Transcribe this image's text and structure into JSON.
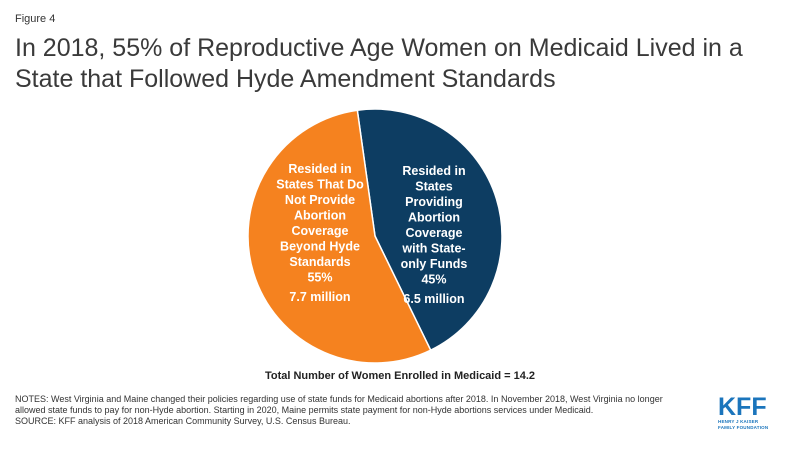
{
  "figure_label": "Figure 4",
  "title": "In 2018, 55% of Reproductive Age Women on Medicaid Lived in a State that Followed Hyde Amendment Standards",
  "chart_data": {
    "type": "pie",
    "slices": [
      {
        "label_lines": [
          "Resided in",
          "States That Do",
          "Not Provide",
          "Abortion",
          "Coverage",
          "Beyond Hyde",
          "Standards"
        ],
        "percent_label": "55%",
        "count_label": "7.7 million",
        "value": 55,
        "color": "#f5821f"
      },
      {
        "label_lines": [
          "Resided in",
          "States",
          "Providing",
          "Abortion",
          "Coverage",
          "with State-",
          "only Funds"
        ],
        "percent_label": "45%",
        "count_label": "6.5 million",
        "value": 45,
        "color": "#0d3d62"
      }
    ],
    "total_label": "Total Number of Women Enrolled in Medicaid = 14.2"
  },
  "notes": "NOTES: West Virginia and Maine changed their policies regarding use of state funds for Medicaid abortions after 2018. In November 2018, West Virginia no longer allowed state funds to pay for non-Hyde abortion. Starting in 2020, Maine permits state payment for non-Hyde abortions services under Medicaid.",
  "source": "SOURCE: KFF analysis of 2018 American Community Survey, U.S. Census Bureau.",
  "logo": {
    "word": "KFF",
    "sub_lines": [
      "HENRY J KAISER",
      "FAMILY FOUNDATION"
    ]
  }
}
